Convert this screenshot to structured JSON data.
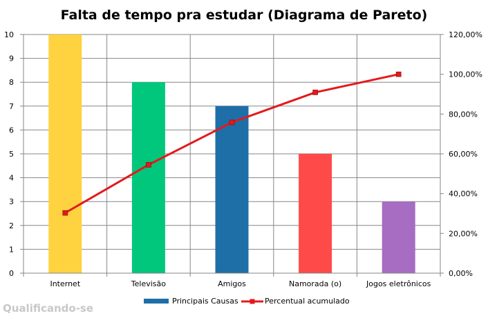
{
  "chart_data": {
    "type": "bar",
    "title": "Falta de tempo pra estudar (Diagrama de Pareto)",
    "categories": [
      "Internet",
      "Televisão",
      "Amigos",
      "Namorada (o)",
      "Jogos eletrônicos"
    ],
    "series": [
      {
        "name": "Principais Causas",
        "type": "bar",
        "axis": "left",
        "values": [
          10,
          8,
          7,
          5,
          3
        ],
        "colors": [
          "#FFD23F",
          "#00C77B",
          "#1E6FA8",
          "#FF4A4A",
          "#A66DC2"
        ],
        "legend_color": "#1E6FA8"
      },
      {
        "name": "Percentual acumulado",
        "type": "line",
        "axis": "right",
        "values": [
          30.3,
          54.5,
          75.8,
          90.9,
          100.0
        ],
        "color": "#E31A1C"
      }
    ],
    "y_left": {
      "min": 0,
      "max": 10,
      "step": 1,
      "ticks": [
        "0",
        "1",
        "2",
        "3",
        "4",
        "5",
        "6",
        "7",
        "8",
        "9",
        "10"
      ]
    },
    "y_right": {
      "min": 0,
      "max": 120,
      "step": 20,
      "ticks": [
        "0,00%",
        "20,00%",
        "40,00%",
        "60,00%",
        "80,00%",
        "100,00%",
        "120,00%"
      ]
    },
    "grid": true,
    "legend_position": "bottom"
  },
  "watermark": "Qualificando-se"
}
